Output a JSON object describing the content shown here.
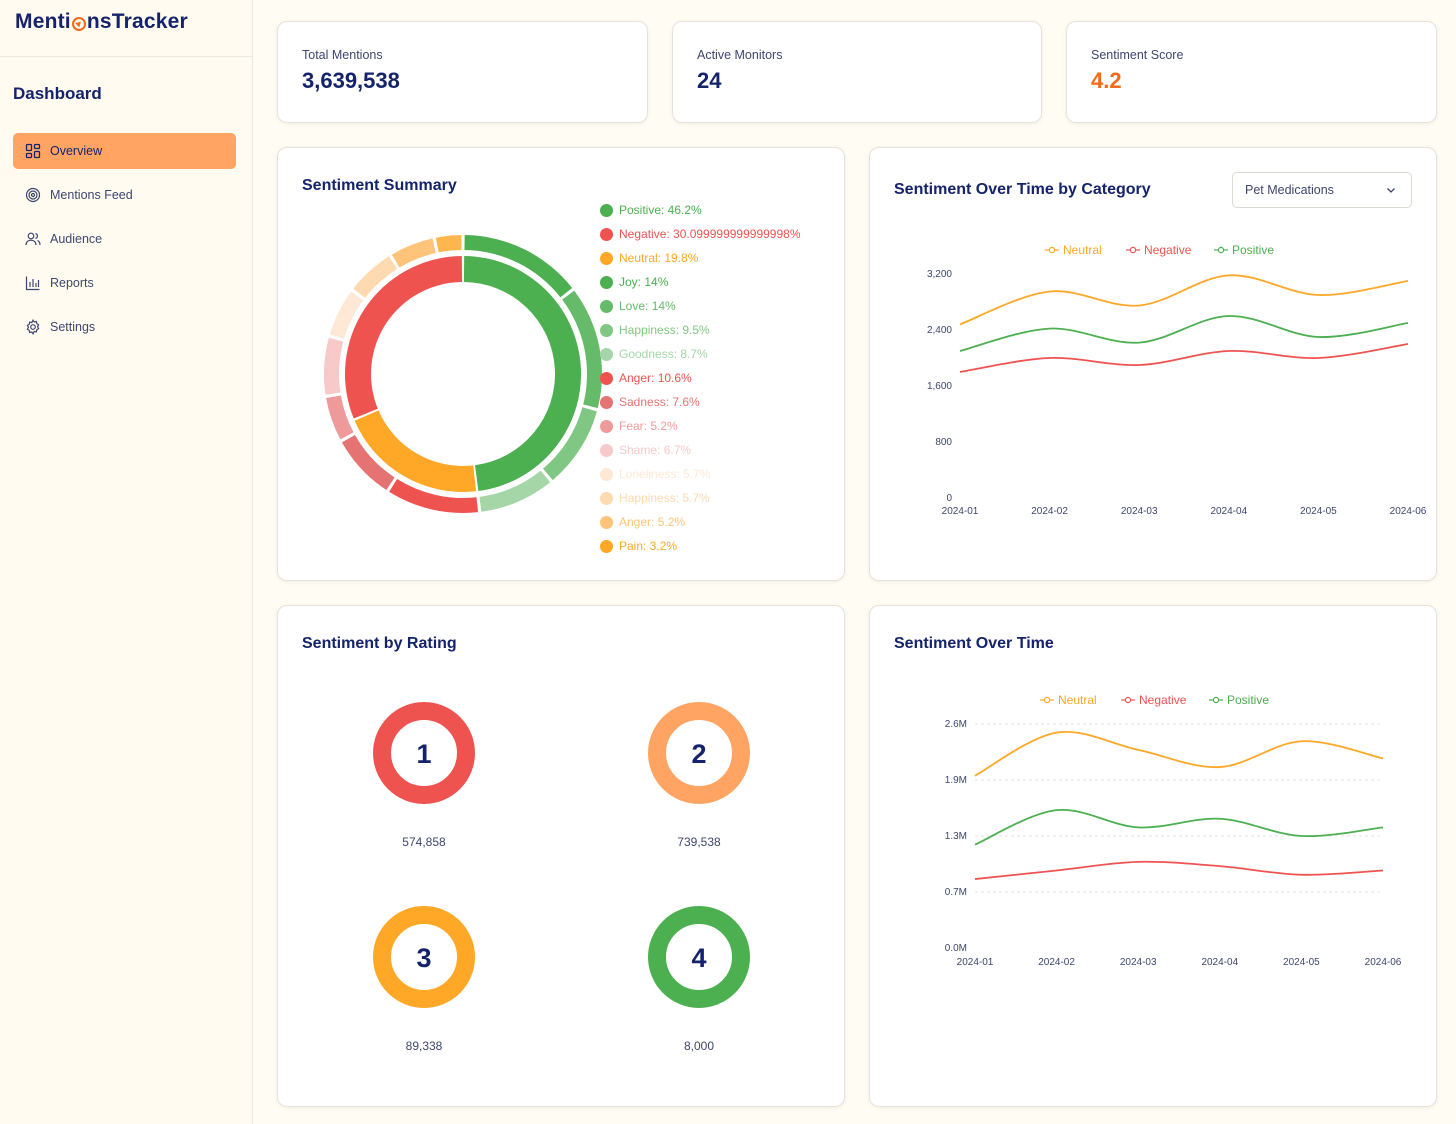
{
  "app": {
    "logo_prefix": "Menti",
    "logo_suffix": "nsTracker",
    "sidebar_heading": "Dashboard",
    "nav": [
      {
        "label": "Overview",
        "icon": "grid-icon",
        "active": true
      },
      {
        "label": "Mentions Feed",
        "icon": "target-icon",
        "active": false
      },
      {
        "label": "Audience",
        "icon": "users-icon",
        "active": false
      },
      {
        "label": "Reports",
        "icon": "bar-chart-icon",
        "active": false
      },
      {
        "label": "Settings",
        "icon": "gear-icon",
        "active": false
      }
    ]
  },
  "stats": {
    "total_mentions": {
      "label": "Total Mentions",
      "value": "3,639,538"
    },
    "active_monitors": {
      "label": "Active Monitors",
      "value": "24"
    },
    "sentiment_score": {
      "label": "Sentiment Score",
      "value": "4.2"
    }
  },
  "sentiment_summary": {
    "title": "Sentiment Summary"
  },
  "category_chart": {
    "title": "Sentiment Over Time by Category",
    "select_value": "Pet Medications"
  },
  "rating": {
    "title": "Sentiment by Rating",
    "items": [
      {
        "rating": "1",
        "count": "574,858",
        "color": "#ef5350"
      },
      {
        "rating": "2",
        "count": "739,538",
        "color": "#ffa463"
      },
      {
        "rating": "3",
        "count": "89,338",
        "color": "#ffa726"
      },
      {
        "rating": "4",
        "count": "8,000",
        "color": "#4caf50"
      }
    ]
  },
  "time_chart": {
    "title": "Sentiment Over Time"
  },
  "colors": {
    "positive": "#4caf50",
    "negative": "#ef5350",
    "neutral": "#ffa726",
    "accent": "#ffa463",
    "navy": "#14236b"
  },
  "chart_data": [
    {
      "id": "sentiment-summary",
      "type": "pie",
      "title": "Sentiment Summary",
      "inner": [
        {
          "name": "Positive",
          "value": 46.2,
          "label": "Positive: 46.2%",
          "color": "#4caf50"
        },
        {
          "name": "Neutral",
          "value": 19.8,
          "label": "Neutral: 19.8%",
          "color": "#ffa726"
        },
        {
          "name": "Negative",
          "value": 30.099999999999998,
          "label": "Negative: 30.099999999999998%",
          "color": "#ef5350"
        }
      ],
      "outer": [
        {
          "name": "Joy",
          "value": 14,
          "label": "Joy: 14%",
          "color": "#4caf50",
          "group": "Positive"
        },
        {
          "name": "Love",
          "value": 14,
          "label": "Love: 14%",
          "color": "#66bb6a",
          "group": "Positive"
        },
        {
          "name": "Happiness",
          "value": 9.5,
          "label": "Happiness: 9.5%",
          "color": "#81c784",
          "group": "Positive"
        },
        {
          "name": "Goodness",
          "value": 8.7,
          "label": "Goodness: 8.7%",
          "color": "#a5d6a7",
          "group": "Positive"
        },
        {
          "name": "Anger",
          "value": 10.6,
          "label": "Anger: 10.6%",
          "color": "#ef5350",
          "group": "Negative"
        },
        {
          "name": "Sadness",
          "value": 7.6,
          "label": "Sadness: 7.6%",
          "color": "#e57373",
          "group": "Negative"
        },
        {
          "name": "Fear",
          "value": 5.2,
          "label": "Fear: 5.2%",
          "color": "#ef9a9a",
          "group": "Negative"
        },
        {
          "name": "Shame",
          "value": 6.7,
          "label": "Shame: 6.7%",
          "color": "#f8c9c9",
          "group": "Negative"
        },
        {
          "name": "Loneliness",
          "value": 5.7,
          "label": "Loneliness: 5.7%",
          "color": "#ffe9d6",
          "group": "Neutral"
        },
        {
          "name": "Happiness",
          "value": 5.7,
          "label": "Happiness: 5.7%",
          "color": "#ffd9b0",
          "group": "Neutral"
        },
        {
          "name": "Anger",
          "value": 5.2,
          "label": "Anger: 5.2%",
          "color": "#ffc37a",
          "group": "Neutral"
        },
        {
          "name": "Pain",
          "value": 3.2,
          "label": "Pain: 3.2%",
          "color": "#ffb74d",
          "group": "Neutral"
        }
      ],
      "legend_order": [
        "Positive: 46.2%",
        "Negative: 30.099999999999998%",
        "Neutral: 19.8%",
        "Joy: 14%",
        "Love: 14%",
        "Happiness: 9.5%",
        "Goodness: 8.7%",
        "Anger: 10.6%",
        "Sadness: 7.6%",
        "Fear: 5.2%",
        "Shame: 6.7%",
        "Loneliness: 5.7%",
        "Happiness: 5.7%",
        "Anger: 5.2%",
        "Pain: 3.2%"
      ],
      "legend_colors": [
        "#4caf50",
        "#ef5350",
        "#ffa726",
        "#4caf50",
        "#66bb6a",
        "#81c784",
        "#a5d6a7",
        "#ef5350",
        "#e57373",
        "#ef9a9a",
        "#f8c9c9",
        "#ffe9d6",
        "#ffd9b0",
        "#ffc37a",
        "#ffa726"
      ],
      "legend_text_colors": [
        "#4caf50",
        "#ef5350",
        "#ffa726",
        "#4caf50",
        "#66bb6a",
        "#81c784",
        "#a5d6a7",
        "#ef5350",
        "#e57373",
        "#ef9a9a",
        "#f8c9c9",
        "#ffe9d6",
        "#ffd9b0",
        "#ffc37a",
        "#ffa726"
      ]
    },
    {
      "id": "category-line",
      "type": "line",
      "title": "Sentiment Over Time by Category",
      "categories": [
        "2024-01",
        "2024-02",
        "2024-03",
        "2024-04",
        "2024-05",
        "2024-06"
      ],
      "ylim": [
        0,
        3200
      ],
      "yticks": [
        0,
        800,
        1600,
        2400,
        3200
      ],
      "ytick_labels": [
        "0",
        "800",
        "1,600",
        "2,400",
        "3,200"
      ],
      "grid": false,
      "series": [
        {
          "name": "Neutral",
          "color": "#ffa726",
          "values": [
            2480,
            2950,
            2750,
            3180,
            2900,
            3100
          ]
        },
        {
          "name": "Negative",
          "color": "#ef5350",
          "values": [
            1800,
            2000,
            1900,
            2100,
            2000,
            2200
          ]
        },
        {
          "name": "Positive",
          "color": "#4caf50",
          "values": [
            2100,
            2420,
            2220,
            2600,
            2300,
            2500
          ]
        }
      ]
    },
    {
      "id": "time-line",
      "type": "line",
      "title": "Sentiment Over Time",
      "categories": [
        "2024-01",
        "2024-02",
        "2024-03",
        "2024-04",
        "2024-05",
        "2024-06"
      ],
      "ylim": [
        0,
        2.6
      ],
      "yticks": [
        0,
        0.65,
        1.3,
        1.95,
        2.6
      ],
      "ytick_labels": [
        "0.0M",
        "0.7M",
        "1.3M",
        "1.9M",
        "2.6M"
      ],
      "grid": true,
      "series": [
        {
          "name": "Neutral",
          "color": "#ffa726",
          "values": [
            2.0,
            2.5,
            2.3,
            2.1,
            2.4,
            2.2
          ]
        },
        {
          "name": "Negative",
          "color": "#ef5350",
          "values": [
            0.8,
            0.9,
            1.0,
            0.95,
            0.85,
            0.9
          ]
        },
        {
          "name": "Positive",
          "color": "#4caf50",
          "values": [
            1.2,
            1.6,
            1.4,
            1.5,
            1.3,
            1.4
          ]
        }
      ]
    }
  ]
}
